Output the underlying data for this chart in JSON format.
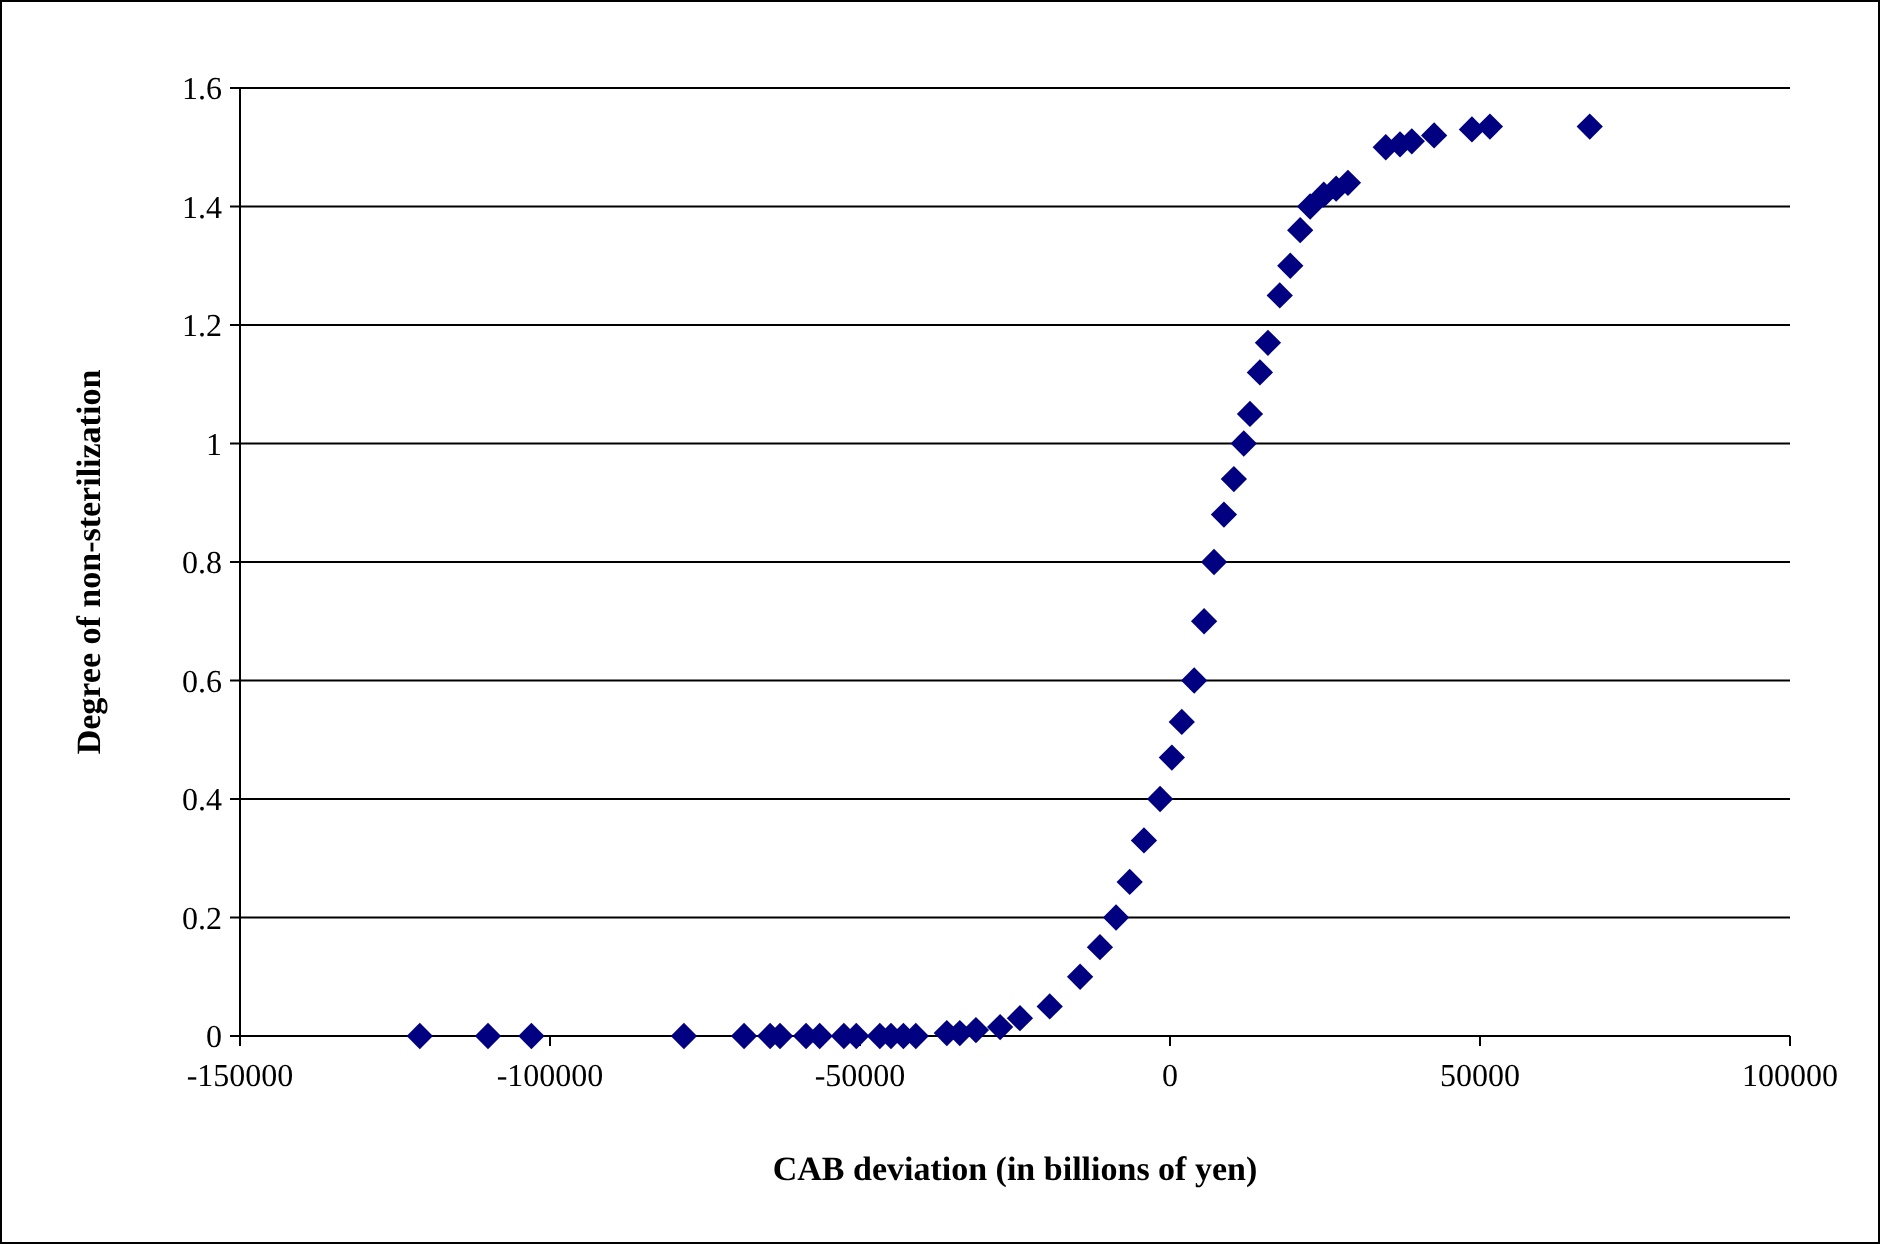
{
  "chart_data": {
    "type": "scatter",
    "xlabel": "CAB deviation (in billions of yen)",
    "ylabel": "Degree of non-sterilization",
    "x": [
      -121000,
      -110000,
      -103000,
      -78400,
      -68700,
      -64500,
      -62900,
      -58700,
      -56500,
      -52600,
      -50600,
      -46800,
      -45000,
      -43000,
      -41000,
      -36000,
      -33900,
      -31300,
      -27400,
      -24200,
      -19400,
      -14500,
      -11300,
      -8700,
      -6500,
      -4200,
      -1600,
      300,
      1900,
      3900,
      5500,
      7100,
      8700,
      10300,
      11900,
      12900,
      14500,
      15800,
      17700,
      19400,
      21000,
      22600,
      24800,
      26800,
      28700,
      34800,
      37100,
      39000,
      42600,
      48700,
      51600,
      67700
    ],
    "series": [
      {
        "color": "#000080",
        "values": [
          0,
          0,
          0,
          0,
          0,
          0,
          0,
          0,
          0,
          0,
          0,
          0,
          0,
          0,
          0,
          0.005,
          0.005,
          0.01,
          0.015,
          0.03,
          0.05,
          0.1,
          0.15,
          0.2,
          0.26,
          0.33,
          0.4,
          0.47,
          0.53,
          0.6,
          0.7,
          0.8,
          0.88,
          0.94,
          1.0,
          1.05,
          1.12,
          1.17,
          1.25,
          1.3,
          1.36,
          1.4,
          1.42,
          1.43,
          1.44,
          1.5,
          1.505,
          1.51,
          1.52,
          1.53,
          1.535,
          1.535
        ]
      }
    ],
    "xlim": [
      -150000,
      100000
    ],
    "xticks": [
      -150000,
      -100000,
      -50000,
      0,
      50000,
      100000
    ],
    "ylim": [
      0,
      1.6
    ],
    "yticks": [
      0,
      0.2,
      0.4,
      0.6,
      0.8,
      1,
      1.2,
      1.4,
      1.6
    ],
    "grid": "y",
    "marker": "diamond"
  }
}
